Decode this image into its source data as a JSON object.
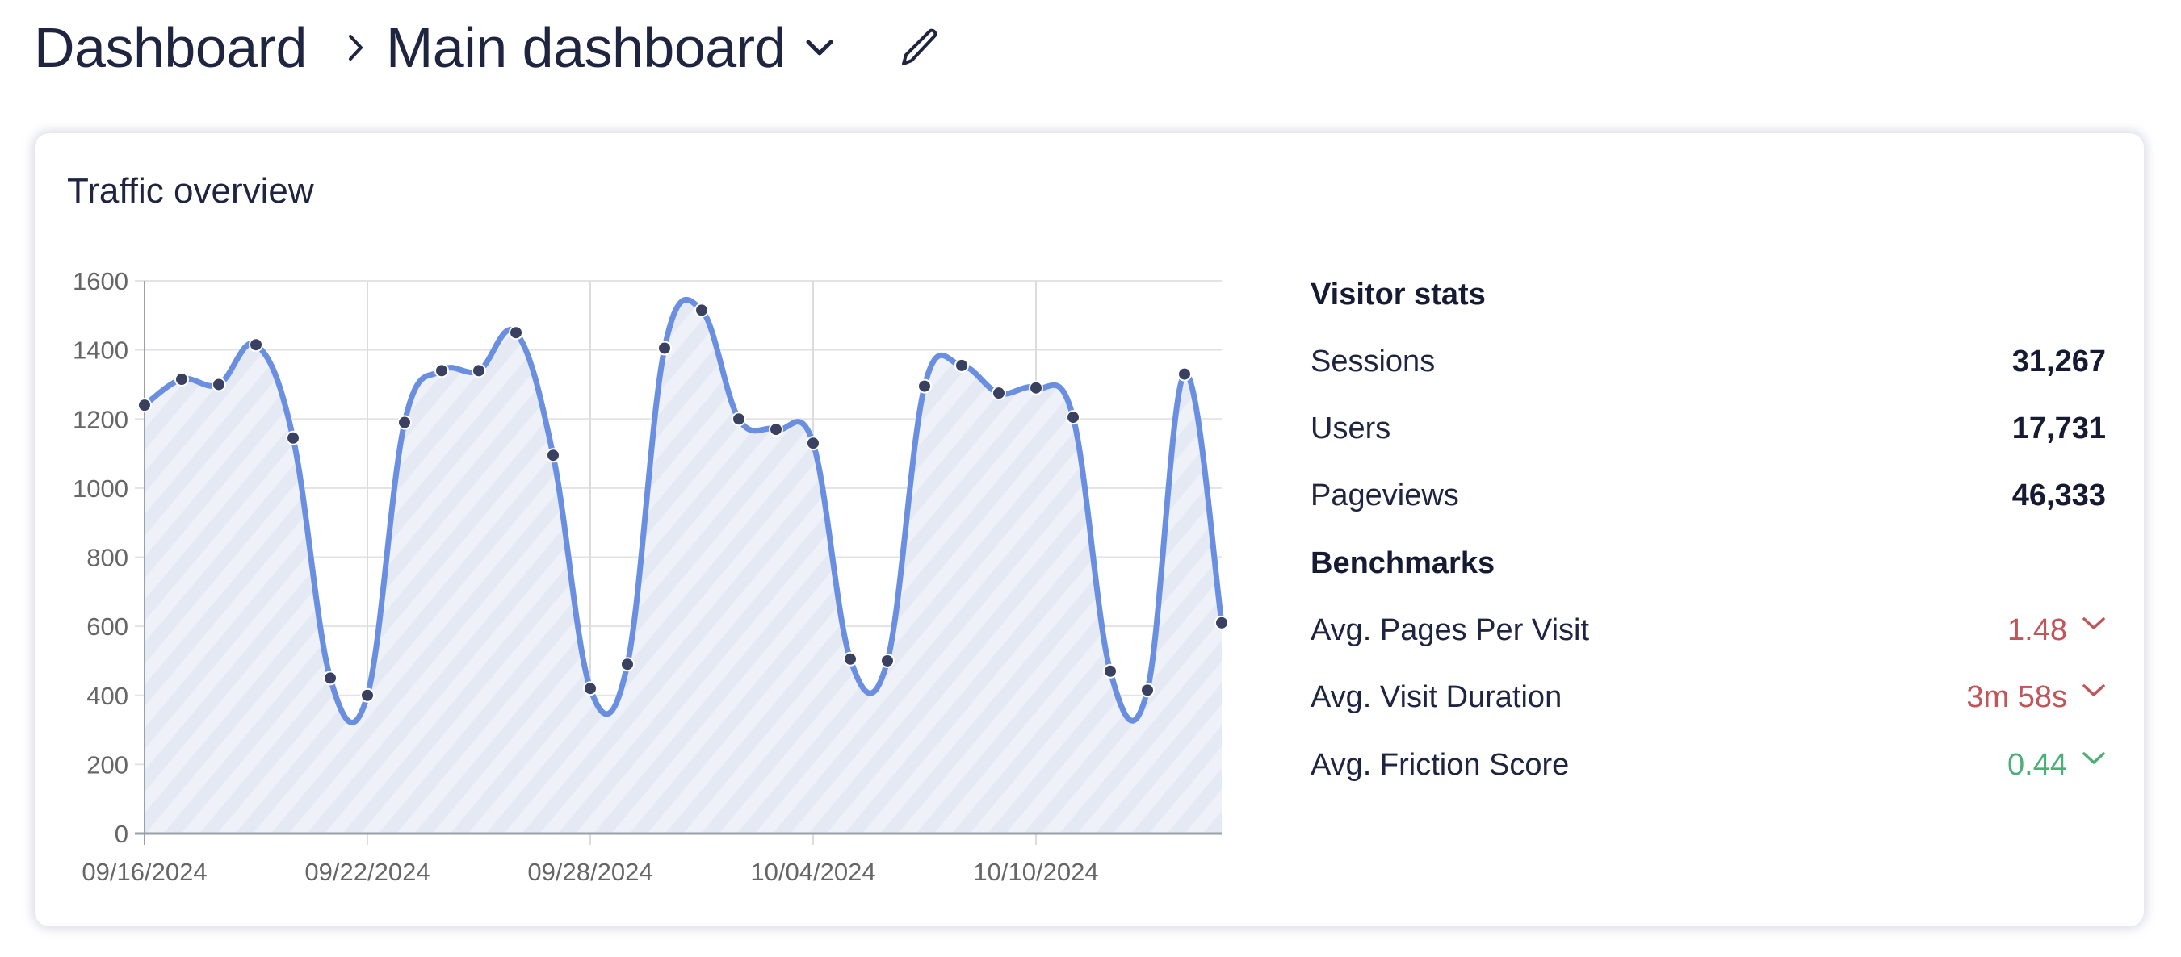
{
  "header": {
    "breadcrumb_root": "Dashboard",
    "breadcrumb_separator_icon": "chevron-right-icon",
    "current_dashboard": "Main dashboard",
    "dropdown_icon": "chevron-down-icon",
    "edit_icon": "pencil-icon"
  },
  "card": {
    "title": "Traffic overview"
  },
  "visitor_stats": {
    "heading": "Visitor stats",
    "rows": [
      {
        "label": "Sessions",
        "value": "31,267"
      },
      {
        "label": "Users",
        "value": "17,731"
      },
      {
        "label": "Pageviews",
        "value": "46,333"
      }
    ]
  },
  "benchmarks": {
    "heading": "Benchmarks",
    "rows": [
      {
        "label": "Avg. Pages Per Visit",
        "value": "1.48",
        "trend": "down",
        "color": "#c0555a"
      },
      {
        "label": "Avg. Visit Duration",
        "value": "3m 58s",
        "trend": "down",
        "color": "#c0555a"
      },
      {
        "label": "Avg. Friction Score",
        "value": "0.44",
        "trend": "down",
        "color": "#4caf78"
      }
    ]
  },
  "colors": {
    "line": "#6a8ee0",
    "marker": "#3a4160",
    "area_fill": "#eef1f8",
    "area_stripe": "#e4e9f4",
    "grid": "#e3e3e3",
    "axis": "#9aa0aa",
    "tick_label": "#666666",
    "negative": "#c0555a",
    "positive": "#4caf78"
  },
  "chart_data": {
    "type": "area",
    "title": "Traffic overview",
    "xlabel": "",
    "ylabel": "",
    "ylim": [
      0,
      1600
    ],
    "yticks": [
      0,
      200,
      400,
      600,
      800,
      1000,
      1200,
      1400,
      1600
    ],
    "xtick_labels": [
      "09/16/2024",
      "09/22/2024",
      "09/28/2024",
      "10/04/2024",
      "10/10/2024"
    ],
    "grid": true,
    "legend": null,
    "x": [
      "09/16/2024",
      "09/17/2024",
      "09/18/2024",
      "09/19/2024",
      "09/20/2024",
      "09/21/2024",
      "09/22/2024",
      "09/23/2024",
      "09/24/2024",
      "09/25/2024",
      "09/26/2024",
      "09/27/2024",
      "09/28/2024",
      "09/29/2024",
      "09/30/2024",
      "10/01/2024",
      "10/02/2024",
      "10/03/2024",
      "10/04/2024",
      "10/05/2024",
      "10/06/2024",
      "10/07/2024",
      "10/08/2024",
      "10/09/2024",
      "10/10/2024",
      "10/11/2024",
      "10/12/2024",
      "10/13/2024",
      "10/14/2024",
      "10/15/2024"
    ],
    "series": [
      {
        "name": "Sessions",
        "values": [
          1240,
          1315,
          1300,
          1415,
          1145,
          450,
          400,
          1190,
          1340,
          1340,
          1450,
          1095,
          420,
          490,
          1405,
          1515,
          1200,
          1170,
          1130,
          505,
          500,
          1295,
          1355,
          1275,
          1290,
          1205,
          470,
          415,
          1330,
          610
        ]
      }
    ]
  }
}
